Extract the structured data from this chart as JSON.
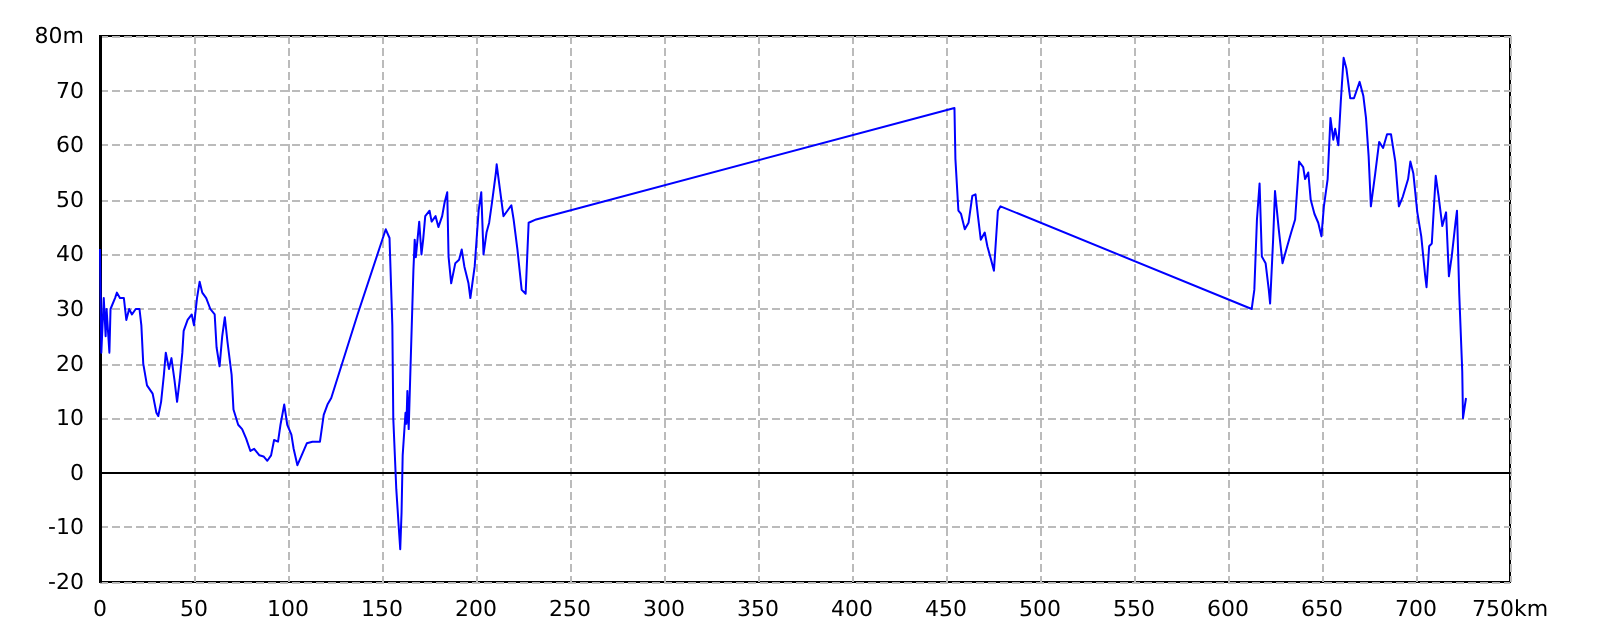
{
  "chart_data": {
    "type": "line",
    "grid": true,
    "marker": "none",
    "line_style": "solid",
    "xlim": [
      0,
      750
    ],
    "xticks": [
      0,
      50,
      100,
      150,
      200,
      250,
      300,
      350,
      400,
      450,
      500,
      550,
      600,
      650,
      700,
      {
        "value": 750,
        "label": "750km"
      }
    ],
    "ylim": [
      -20,
      80
    ],
    "yticks": [
      -20,
      -10,
      0,
      10,
      20,
      30,
      40,
      50,
      60,
      70,
      {
        "value": 80,
        "label": "80m"
      }
    ],
    "series": [
      {
        "color": "#0000ff",
        "x": [
          0,
          0.7,
          2,
          3,
          3.5,
          5,
          5.6,
          8,
          9,
          10.6,
          12.7,
          14,
          15.5,
          17,
          19,
          21,
          22,
          23,
          25,
          27,
          28,
          30,
          31,
          32.5,
          34,
          35,
          36.7,
          38,
          39.6,
          41,
          42.4,
          43.8,
          44.5,
          46.6,
          48.8,
          50,
          51.6,
          53,
          54.4,
          56.5,
          58.7,
          61,
          62,
          63.6,
          65,
          66.4,
          67.8,
          70,
          71,
          73.5,
          75.6,
          77.7,
          80,
          82,
          84.8,
          87,
          89,
          91,
          92.6,
          94.7,
          96,
          98,
          99.6,
          101.8,
          103,
          105,
          108,
          110,
          113,
          117,
          119,
          121,
          123,
          137,
          152,
          154,
          155.5,
          156,
          157.6,
          159,
          159.7,
          160.4,
          161,
          162.5,
          163,
          163.5,
          164.2,
          165,
          166.7,
          167.4,
          168,
          169.8,
          171,
          171.9,
          173,
          175.3,
          176.4,
          178.5,
          180,
          182,
          183.3,
          184.7,
          185.4,
          186.8,
          189,
          191,
          192.4,
          193.8,
          196,
          197,
          199.3,
          201.4,
          202.8,
          204,
          205.6,
          207,
          208.5,
          210.6,
          211,
          212.7,
          214.6,
          216.7,
          218.8,
          220,
          222,
          224.3,
          226.4,
          228,
          232,
          454.5,
          455,
          456.6,
          458,
          460,
          462,
          464,
          465.7,
          467,
          468.5,
          470.6,
          472,
          474,
          475.5,
          477.6,
          479,
          612.6,
          614,
          615.4,
          616.8,
          618,
          620,
          621.7,
          622.4,
          624,
          625,
          627,
          629,
          631.5,
          633.6,
          635.7,
          637.8,
          640,
          641,
          642.7,
          644,
          646,
          648,
          649.7,
          651,
          653,
          654.5,
          656,
          657,
          658.7,
          660,
          661.5,
          663,
          665,
          667,
          670,
          672,
          673.4,
          674.8,
          676,
          678.3,
          680.4,
          682.5,
          684.6,
          686.7,
          689,
          690.9,
          693,
          695.8,
          697,
          698.6,
          700.7,
          702.8,
          704.9,
          705.6,
          707,
          708.4,
          710.5,
          712,
          714,
          716,
          717.5,
          719,
          721,
          721.8,
          723,
          724.6,
          725,
          726.6
        ],
        "values": [
          41,
          22,
          32,
          25,
          30,
          22,
          30,
          32,
          33,
          32,
          32,
          28,
          30,
          29,
          30,
          30,
          27,
          20,
          16,
          15,
          14.5,
          11,
          10.4,
          13,
          18,
          22,
          19,
          21,
          17,
          13,
          17,
          22,
          26,
          28,
          29,
          27,
          32,
          35,
          33,
          32,
          30,
          29,
          23,
          19.5,
          25,
          28.5,
          24,
          18,
          11.6,
          8.8,
          8,
          6.3,
          4,
          4.4,
          3.2,
          3,
          2.2,
          3.2,
          6,
          5.7,
          8.8,
          12.5,
          8.8,
          7,
          4.4,
          1.4,
          3.8,
          5.4,
          5.7,
          5.7,
          10.6,
          12.5,
          13.7,
          29,
          44.6,
          43,
          27,
          10,
          -3,
          -10.4,
          -14,
          -7.3,
          3.2,
          11,
          9,
          15,
          8,
          17.4,
          37,
          42.7,
          39.5,
          46,
          40,
          42.7,
          47,
          48,
          46,
          47,
          45,
          47,
          49.5,
          51.4,
          39.6,
          34.7,
          38.4,
          39,
          40.9,
          37.8,
          34.7,
          32,
          37.8,
          48,
          51.4,
          40,
          44,
          45.8,
          49.5,
          55,
          56.5,
          52,
          47,
          48,
          49,
          46.4,
          41,
          33.5,
          32.8,
          45.8,
          46.4,
          66.8,
          57.5,
          48,
          47.4,
          44.6,
          45.8,
          50.7,
          51,
          47,
          42.7,
          44,
          41.5,
          39,
          37,
          48,
          48.8,
          30,
          33.5,
          46.4,
          53,
          39.6,
          38.4,
          33.5,
          31,
          42.7,
          51.6,
          44.6,
          38.4,
          41.5,
          44,
          46.4,
          57,
          56,
          53.8,
          55,
          50,
          47.4,
          45.8,
          43.3,
          48.8,
          53.8,
          65,
          61,
          63,
          60,
          68,
          76,
          74,
          68.6,
          68.6,
          71.6,
          69,
          65,
          58,
          48.8,
          54.8,
          60.6,
          59.5,
          62,
          62,
          57,
          48.8,
          50.6,
          53.8,
          57,
          54.8,
          47.7,
          43.3,
          36,
          34,
          41.5,
          42,
          54.4,
          50.7,
          45.2,
          47.7,
          36,
          39.6,
          45.8,
          48,
          32.8,
          18.6,
          10,
          13.7
        ]
      }
    ]
  }
}
